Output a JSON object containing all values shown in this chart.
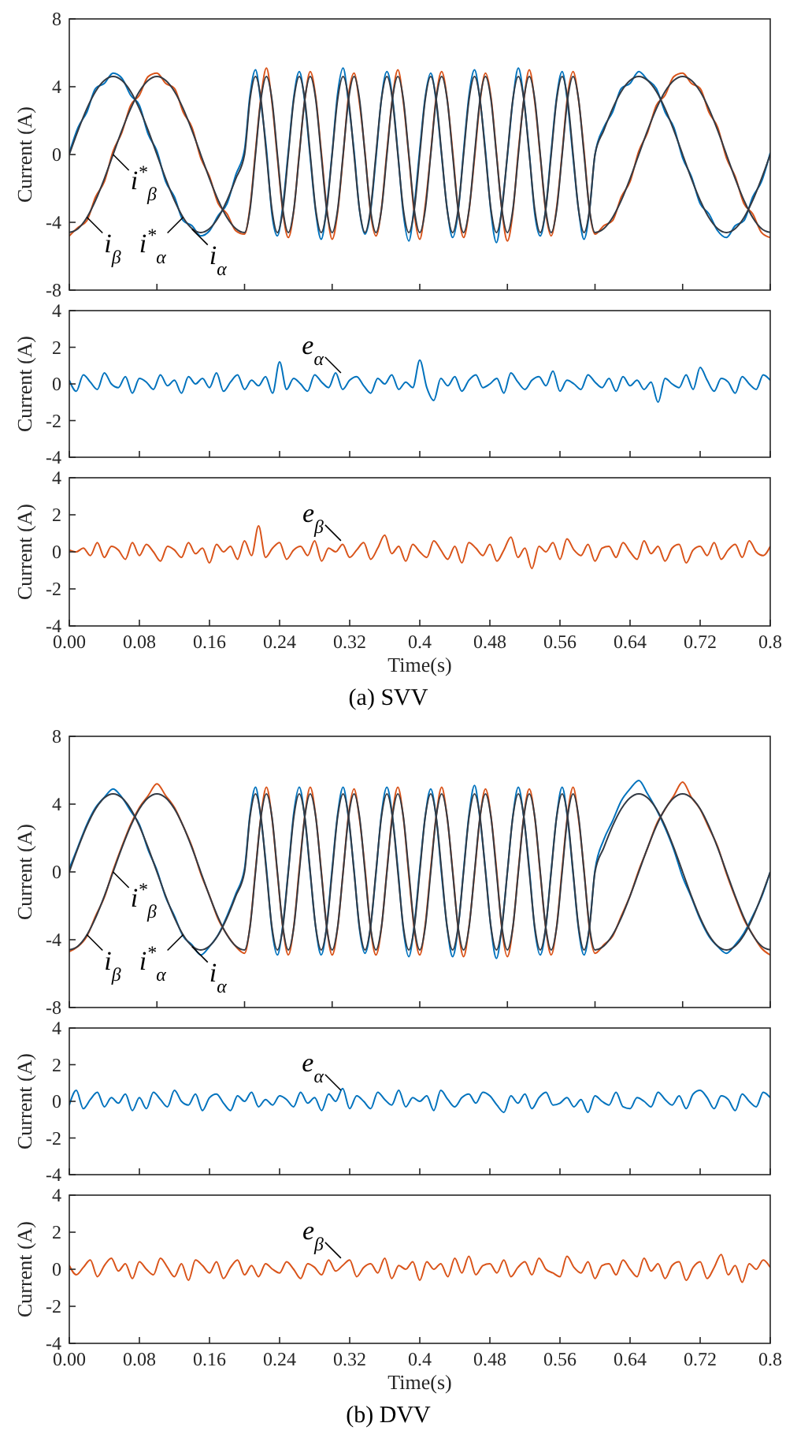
{
  "chart_data": [
    {
      "type": "line",
      "ylabel": "Current (A)",
      "xlim": [
        0,
        0.8
      ],
      "ylim": [
        -8,
        8
      ],
      "yticks": [
        -8,
        -4,
        0,
        4,
        8
      ],
      "tick_labels": "y",
      "xticks": [
        {
          "value": 0,
          "label": null
        },
        {
          "value": 0.1,
          "label": null
        },
        {
          "value": 0.2,
          "label": null
        },
        {
          "value": 0.3,
          "label": null
        },
        {
          "value": 0.4,
          "label": null
        },
        {
          "value": 0.5,
          "label": null
        },
        {
          "value": 0.6,
          "label": null
        },
        {
          "value": 0.7,
          "label": null
        },
        {
          "value": 0.8,
          "label": null
        }
      ],
      "x": [
        0,
        0.01,
        0.02,
        0.03,
        0.04,
        0.05,
        0.06,
        0.07,
        0.08,
        0.09,
        0.1,
        0.11,
        0.12,
        0.13,
        0.14,
        0.15,
        0.16,
        0.17,
        0.18,
        0.19,
        0.2,
        0.20625,
        0.2125,
        0.21875,
        0.225,
        0.23125,
        0.2375,
        0.24375,
        0.25,
        0.25625,
        0.2625,
        0.26875,
        0.275,
        0.28125,
        0.2875,
        0.29375,
        0.3,
        0.30625,
        0.3125,
        0.31875,
        0.325,
        0.33125,
        0.3375,
        0.34375,
        0.35,
        0.35625,
        0.3625,
        0.36875,
        0.375,
        0.38125,
        0.3875,
        0.39375,
        0.4,
        0.40625,
        0.4125,
        0.41875,
        0.425,
        0.43125,
        0.4375,
        0.44375,
        0.45,
        0.45625,
        0.4625,
        0.46875,
        0.475,
        0.48125,
        0.4875,
        0.49375,
        0.5,
        0.50625,
        0.5125,
        0.51875,
        0.525,
        0.53125,
        0.5375,
        0.54375,
        0.55,
        0.55625,
        0.5625,
        0.56875,
        0.575,
        0.58125,
        0.5875,
        0.59375,
        0.6,
        0.61,
        0.62,
        0.63,
        0.64,
        0.65,
        0.66,
        0.67,
        0.68,
        0.69,
        0.7,
        0.71,
        0.72,
        0.73,
        0.74,
        0.75,
        0.76,
        0.77,
        0.78,
        0.79,
        0.8
      ],
      "series": [
        {
          "color": "#0072bd",
          "values": [
            0.1,
            1.6,
            2.5,
            3.9,
            4.2,
            4.8,
            4.5,
            3.5,
            2.9,
            1.2,
            0.2,
            -1.6,
            -2.5,
            -3.9,
            -4.2,
            -4.8,
            -4.5,
            -3.6,
            -2.9,
            -1.2,
            0.3,
            3.5,
            5.0,
            3.0,
            0.3,
            -3.5,
            -4.8,
            -3.0,
            0.2,
            3.4,
            4.9,
            3.1,
            -0.2,
            -3.4,
            -5.0,
            -3.1,
            0.1,
            3.6,
            5.1,
            3.0,
            0.2,
            -3.3,
            -4.7,
            -3.4,
            -0.2,
            3.3,
            4.9,
            3.4,
            0.1,
            -3.5,
            -5.1,
            -3.0,
            0.3,
            3.4,
            4.8,
            3.1,
            -0.1,
            -3.2,
            -4.9,
            -3.4,
            0.2,
            3.5,
            5.0,
            3.2,
            0.2,
            -3.4,
            -5.2,
            -3.1,
            -0.1,
            3.2,
            5.1,
            3.3,
            0.1,
            -3.5,
            -4.8,
            -3.2,
            0.2,
            3.4,
            4.9,
            3.0,
            -0.2,
            -3.3,
            -5.0,
            -3.3,
            0.0,
            1.6,
            2.5,
            3.9,
            4.2,
            4.9,
            4.4,
            3.9,
            2.5,
            1.6,
            -0.2,
            -1.3,
            -2.9,
            -3.5,
            -4.5,
            -4.9,
            -4.2,
            -3.9,
            -2.5,
            -1.6,
            0.1
          ]
        },
        {
          "color": "#d95319",
          "values": [
            -4.8,
            -4.3,
            -3.9,
            -2.5,
            -1.6,
            0.2,
            1.3,
            2.9,
            3.5,
            4.6,
            4.8,
            4.2,
            3.9,
            2.5,
            1.6,
            -0.2,
            -1.3,
            -2.9,
            -3.5,
            -4.5,
            -4.7,
            -3.1,
            0.2,
            3.4,
            5.1,
            3.1,
            -0.2,
            -3.4,
            -4.9,
            -3.3,
            0.1,
            3.2,
            4.9,
            3.4,
            0.2,
            -3.1,
            -5.0,
            -3.4,
            -0.1,
            3.5,
            4.8,
            3.0,
            0.1,
            -3.4,
            -4.8,
            -3.2,
            0.2,
            3.3,
            5.0,
            3.1,
            -0.1,
            -3.5,
            -5.0,
            -3.0,
            0.1,
            3.4,
            4.9,
            3.3,
            0.2,
            -3.2,
            -4.9,
            -3.3,
            -0.2,
            3.1,
            4.8,
            3.4,
            0.1,
            -3.3,
            -5.1,
            -3.4,
            0.2,
            3.2,
            5.0,
            3.1,
            -0.1,
            -3.4,
            -4.8,
            -3.1,
            0.1,
            3.5,
            4.9,
            3.2,
            0.2,
            -3.3,
            -4.7,
            -4.2,
            -3.9,
            -2.5,
            -1.6,
            0.2,
            1.3,
            2.9,
            3.5,
            4.6,
            4.8,
            4.2,
            3.9,
            2.5,
            1.6,
            -0.2,
            -1.3,
            -2.9,
            -3.5,
            -4.6,
            -4.9
          ]
        },
        {
          "color": "#333a44",
          "values": [
            0,
            1.42,
            2.7,
            3.72,
            4.37,
            4.6,
            4.37,
            3.72,
            2.7,
            1.42,
            0,
            -1.42,
            -2.7,
            -3.72,
            -4.37,
            -4.6,
            -4.37,
            -3.72,
            -2.7,
            -1.42,
            0,
            3.25,
            4.6,
            3.25,
            0,
            -3.25,
            -4.6,
            -3.25,
            0,
            3.25,
            4.6,
            3.25,
            0,
            -3.25,
            -4.6,
            -3.25,
            0,
            3.25,
            4.6,
            3.25,
            0,
            -3.25,
            -4.6,
            -3.25,
            0,
            3.25,
            4.6,
            3.25,
            0,
            -3.25,
            -4.6,
            -3.25,
            0,
            3.25,
            4.6,
            3.25,
            0,
            -3.25,
            -4.6,
            -3.25,
            0,
            3.25,
            4.6,
            3.25,
            0,
            -3.25,
            -4.6,
            -3.25,
            0,
            3.25,
            4.6,
            3.25,
            0,
            -3.25,
            -4.6,
            -3.25,
            0,
            3.25,
            4.6,
            3.25,
            0,
            -3.25,
            -4.6,
            -3.25,
            0,
            1.42,
            2.7,
            3.72,
            4.37,
            4.6,
            4.37,
            3.72,
            2.7,
            1.42,
            0,
            -1.42,
            -2.7,
            -3.72,
            -4.37,
            -4.6,
            -4.37,
            -3.72,
            -2.7,
            -1.42,
            0
          ]
        },
        {
          "color": "#333a44",
          "values": [
            -4.6,
            -4.37,
            -3.72,
            -2.7,
            -1.42,
            0,
            1.42,
            2.7,
            3.72,
            4.37,
            4.6,
            4.37,
            3.72,
            2.7,
            1.42,
            0,
            -1.42,
            -2.7,
            -3.72,
            -4.37,
            -4.6,
            -3.25,
            0,
            3.25,
            4.6,
            3.25,
            0,
            -3.25,
            -4.6,
            -3.25,
            0,
            3.25,
            4.6,
            3.25,
            0,
            -3.25,
            -4.6,
            -3.25,
            0,
            3.25,
            4.6,
            3.25,
            0,
            -3.25,
            -4.6,
            -3.25,
            0,
            3.25,
            4.6,
            3.25,
            0,
            -3.25,
            -4.6,
            -3.25,
            0,
            3.25,
            4.6,
            3.25,
            0,
            -3.25,
            -4.6,
            -3.25,
            0,
            3.25,
            4.6,
            3.25,
            0,
            -3.25,
            -4.6,
            -3.25,
            0,
            3.25,
            4.6,
            3.25,
            0,
            -3.25,
            -4.6,
            -3.25,
            0,
            3.25,
            4.6,
            3.25,
            0,
            -3.25,
            -4.6,
            -4.37,
            -3.72,
            -2.7,
            -1.42,
            0,
            1.42,
            2.7,
            3.72,
            4.37,
            4.6,
            4.37,
            3.72,
            2.7,
            1.42,
            0,
            -1.42,
            -2.7,
            -3.72,
            -4.37,
            -4.6
          ]
        }
      ],
      "annotations": [
        {
          "text": "i$^{*}$$_{β}$",
          "x": 0.05,
          "y": 0
        },
        {
          "text": "i$_{β}$",
          "x": 0.02,
          "y": -3.7
        },
        {
          "text": "i$^{*}$$_{α}$",
          "x": 0.13,
          "y": -3.7
        },
        {
          "text": "i$_{α}$",
          "x": 0.14,
          "y": -4.4
        }
      ]
    },
    {
      "type": "line",
      "ylabel": "Current (A)",
      "xlim": [
        0,
        0.8
      ],
      "ylim": [
        -4,
        4
      ],
      "yticks": [
        -4,
        -2,
        0,
        2,
        4
      ],
      "tick_labels": "y",
      "xticks": [
        {
          "value": 0,
          "label": null
        },
        {
          "value": 0.08,
          "label": null
        },
        {
          "value": 0.16,
          "label": null
        },
        {
          "value": 0.24,
          "label": null
        },
        {
          "value": 0.32,
          "label": null
        },
        {
          "value": 0.4,
          "label": null
        },
        {
          "value": 0.48,
          "label": null
        },
        {
          "value": 0.56,
          "label": null
        },
        {
          "value": 0.64,
          "label": null
        },
        {
          "value": 0.72,
          "label": null
        },
        {
          "value": 0.8,
          "label": null
        }
      ],
      "x": [
        0,
        0.008,
        0.016,
        0.024,
        0.032,
        0.04,
        0.048,
        0.056,
        0.064,
        0.072,
        0.08,
        0.088,
        0.096,
        0.104,
        0.112,
        0.12,
        0.128,
        0.136,
        0.144,
        0.152,
        0.16,
        0.168,
        0.176,
        0.184,
        0.192,
        0.2,
        0.208,
        0.216,
        0.224,
        0.232,
        0.24,
        0.248,
        0.256,
        0.264,
        0.272,
        0.28,
        0.288,
        0.296,
        0.304,
        0.312,
        0.32,
        0.328,
        0.336,
        0.344,
        0.352,
        0.36,
        0.368,
        0.376,
        0.384,
        0.392,
        0.4,
        0.408,
        0.416,
        0.424,
        0.432,
        0.44,
        0.448,
        0.456,
        0.464,
        0.472,
        0.48,
        0.488,
        0.496,
        0.504,
        0.512,
        0.52,
        0.528,
        0.536,
        0.544,
        0.552,
        0.56,
        0.568,
        0.576,
        0.584,
        0.592,
        0.6,
        0.608,
        0.616,
        0.624,
        0.632,
        0.64,
        0.648,
        0.656,
        0.664,
        0.672,
        0.68,
        0.688,
        0.696,
        0.704,
        0.712,
        0.72,
        0.728,
        0.736,
        0.744,
        0.752,
        0.76,
        0.768,
        0.776,
        0.784,
        0.792,
        0.8
      ],
      "series": [
        {
          "color": "#0072bd",
          "values": [
            0.2,
            -0.4,
            0.5,
            0.1,
            -0.3,
            0.6,
            0.0,
            -0.2,
            0.4,
            -0.5,
            0.3,
            0.1,
            -0.3,
            0.5,
            -0.1,
            0.2,
            -0.5,
            0.4,
            0.0,
            0.3,
            -0.2,
            0.6,
            -0.4,
            0.1,
            0.5,
            -0.3,
            0.2,
            -0.1,
            0.4,
            -0.5,
            1.2,
            -0.3,
            0.3,
            0.0,
            -0.4,
            0.5,
            0.1,
            -0.2,
            0.6,
            -0.3,
            0.2,
            0.4,
            -0.1,
            -0.5,
            0.3,
            0.0,
            0.5,
            -0.3,
            0.1,
            -0.2,
            1.3,
            -0.2,
            -0.9,
            0.3,
            -0.1,
            0.4,
            -0.4,
            0.2,
            0.5,
            -0.2,
            0.0,
            0.3,
            -0.5,
            0.6,
            0.1,
            -0.3,
            0.2,
            0.4,
            -0.1,
            0.7,
            -0.4,
            0.2,
            0.0,
            -0.3,
            0.5,
            0.1,
            -0.2,
            0.3,
            -0.4,
            0.4,
            -0.1,
            0.2,
            -0.3,
            0.1,
            -1.0,
            0.3,
            0.0,
            -0.2,
            0.5,
            -0.3,
            0.9,
            0.2,
            -0.4,
            0.3,
            0.1,
            -0.5,
            0.4,
            0.0,
            -0.3,
            0.5,
            0.2
          ]
        }
      ],
      "annotations": [
        {
          "text": "e$_{α}$",
          "x": 0.31,
          "y": 0.6
        }
      ]
    },
    {
      "type": "line",
      "ylabel": "Current (A)",
      "xlabel": "Time(s)",
      "xlim": [
        0,
        0.8
      ],
      "ylim": [
        -4,
        4
      ],
      "yticks": [
        -4,
        -2,
        0,
        2,
        4
      ],
      "xticks": [
        {
          "value": 0,
          "label": "0.00"
        },
        0.08,
        0.16,
        0.24,
        0.32,
        0.4,
        0.48,
        0.56,
        0.64,
        0.72,
        0.8
      ],
      "x": [
        0,
        0.008,
        0.016,
        0.024,
        0.032,
        0.04,
        0.048,
        0.056,
        0.064,
        0.072,
        0.08,
        0.088,
        0.096,
        0.104,
        0.112,
        0.12,
        0.128,
        0.136,
        0.144,
        0.152,
        0.16,
        0.168,
        0.176,
        0.184,
        0.192,
        0.2,
        0.208,
        0.216,
        0.224,
        0.232,
        0.24,
        0.248,
        0.256,
        0.264,
        0.272,
        0.28,
        0.288,
        0.296,
        0.304,
        0.312,
        0.32,
        0.328,
        0.336,
        0.344,
        0.352,
        0.36,
        0.368,
        0.376,
        0.384,
        0.392,
        0.4,
        0.408,
        0.416,
        0.424,
        0.432,
        0.44,
        0.448,
        0.456,
        0.464,
        0.472,
        0.48,
        0.488,
        0.496,
        0.504,
        0.512,
        0.52,
        0.528,
        0.536,
        0.544,
        0.552,
        0.56,
        0.568,
        0.576,
        0.584,
        0.592,
        0.6,
        0.608,
        0.616,
        0.624,
        0.632,
        0.64,
        0.648,
        0.656,
        0.664,
        0.672,
        0.68,
        0.688,
        0.696,
        0.704,
        0.712,
        0.72,
        0.728,
        0.736,
        0.744,
        0.752,
        0.76,
        0.768,
        0.776,
        0.784,
        0.792,
        0.8
      ],
      "series": [
        {
          "color": "#d95319",
          "values": [
            0.1,
            0.0,
            0.2,
            -0.2,
            0.5,
            -0.3,
            0.3,
            0.1,
            -0.4,
            0.5,
            -0.2,
            0.4,
            0.0,
            -0.5,
            0.3,
            0.1,
            -0.3,
            0.5,
            -0.1,
            0.2,
            -0.6,
            0.4,
            0.0,
            0.3,
            -0.4,
            0.6,
            -0.2,
            1.4,
            -0.3,
            0.2,
            0.5,
            -0.4,
            0.1,
            0.3,
            -0.2,
            0.6,
            -0.5,
            0.2,
            0.0,
            0.4,
            -0.3,
            0.1,
            0.5,
            -0.4,
            0.2,
            0.9,
            -0.1,
            0.3,
            -0.5,
            0.4,
            0.0,
            -0.3,
            0.6,
            0.1,
            -0.4,
            0.3,
            -0.6,
            0.5,
            0.2,
            -0.2,
            0.4,
            -0.5,
            0.1,
            0.8,
            -0.3,
            0.2,
            -0.9,
            0.3,
            0.0,
            0.5,
            -0.4,
            0.7,
            0.1,
            -0.2,
            0.4,
            -0.5,
            0.2,
            0.3,
            -0.3,
            0.5,
            0.0,
            -0.4,
            0.6,
            -0.1,
            0.3,
            -0.5,
            0.2,
            0.4,
            -0.6,
            0.1,
            0.3,
            -0.2,
            0.5,
            -0.4,
            0.1,
            0.4,
            -0.3,
            0.6,
            0.0,
            -0.2,
            0.3
          ]
        }
      ],
      "annotations": [
        {
          "text": "e$_{β}$",
          "x": 0.31,
          "y": 0.6
        },
        "(a) SVV"
      ]
    },
    {
      "type": "line",
      "ylabel": "Current (A)",
      "xlim": [
        0,
        0.8
      ],
      "ylim": [
        -8,
        8
      ],
      "yticks": [
        -8,
        -4,
        0,
        4,
        8
      ],
      "tick_labels": "y",
      "xticks": [
        {
          "value": 0,
          "label": null
        },
        {
          "value": 0.1,
          "label": null
        },
        {
          "value": 0.2,
          "label": null
        },
        {
          "value": 0.3,
          "label": null
        },
        {
          "value": 0.4,
          "label": null
        },
        {
          "value": 0.5,
          "label": null
        },
        {
          "value": 0.6,
          "label": null
        },
        {
          "value": 0.7,
          "label": null
        },
        {
          "value": 0.8,
          "label": null
        }
      ],
      "x": [
        0,
        0.01,
        0.02,
        0.03,
        0.04,
        0.05,
        0.06,
        0.07,
        0.08,
        0.09,
        0.1,
        0.11,
        0.12,
        0.13,
        0.14,
        0.15,
        0.16,
        0.17,
        0.18,
        0.19,
        0.2,
        0.20625,
        0.2125,
        0.21875,
        0.225,
        0.23125,
        0.2375,
        0.24375,
        0.25,
        0.25625,
        0.2625,
        0.26875,
        0.275,
        0.28125,
        0.2875,
        0.29375,
        0.3,
        0.30625,
        0.3125,
        0.31875,
        0.325,
        0.33125,
        0.3375,
        0.34375,
        0.35,
        0.35625,
        0.3625,
        0.36875,
        0.375,
        0.38125,
        0.3875,
        0.39375,
        0.4,
        0.40625,
        0.4125,
        0.41875,
        0.425,
        0.43125,
        0.4375,
        0.44375,
        0.45,
        0.45625,
        0.4625,
        0.46875,
        0.475,
        0.48125,
        0.4875,
        0.49375,
        0.5,
        0.50625,
        0.5125,
        0.51875,
        0.525,
        0.53125,
        0.5375,
        0.54375,
        0.55,
        0.55625,
        0.5625,
        0.56875,
        0.575,
        0.58125,
        0.5875,
        0.59375,
        0.6,
        0.61,
        0.62,
        0.63,
        0.64,
        0.65,
        0.66,
        0.67,
        0.68,
        0.69,
        0.7,
        0.71,
        0.72,
        0.73,
        0.74,
        0.75,
        0.76,
        0.77,
        0.78,
        0.79,
        0.8
      ],
      "series": [
        {
          "color": "#0072bd",
          "values": [
            0.2,
            1.5,
            2.8,
            3.8,
            4.4,
            4.9,
            4.4,
            3.6,
            2.8,
            1.3,
            0.1,
            -1.5,
            -2.6,
            -3.8,
            -4.3,
            -4.9,
            -4.4,
            -3.7,
            -2.6,
            -1.3,
            0.2,
            3.4,
            5.0,
            3.1,
            0.2,
            -3.4,
            -4.9,
            -3.1,
            0.1,
            3.5,
            5.0,
            3.2,
            -0.1,
            -3.3,
            -4.9,
            -3.2,
            0.2,
            3.4,
            5.0,
            3.1,
            0.1,
            -3.4,
            -4.8,
            -3.3,
            -0.1,
            3.4,
            5.0,
            3.3,
            0.2,
            -3.4,
            -5.0,
            -3.1,
            0.2,
            3.3,
            4.9,
            3.2,
            -0.2,
            -3.3,
            -5.0,
            -3.3,
            0.1,
            3.4,
            5.1,
            3.1,
            0.1,
            -3.3,
            -5.1,
            -3.2,
            0.0,
            3.3,
            5.0,
            3.2,
            0.2,
            -3.4,
            -4.9,
            -3.3,
            0.1,
            3.3,
            5.0,
            3.1,
            -0.1,
            -3.4,
            -4.9,
            -3.2,
            0.1,
            1.9,
            3.0,
            4.2,
            4.9,
            5.4,
            4.6,
            3.7,
            2.6,
            1.3,
            -0.3,
            -1.5,
            -2.8,
            -3.8,
            -4.4,
            -4.8,
            -4.3,
            -3.6,
            -2.6,
            -1.5,
            0.0
          ]
        },
        {
          "color": "#d95319",
          "values": [
            -4.7,
            -4.4,
            -3.8,
            -2.6,
            -1.5,
            0.1,
            1.5,
            2.8,
            3.8,
            4.5,
            5.2,
            4.5,
            3.8,
            2.7,
            1.5,
            -0.1,
            -1.4,
            -2.8,
            -3.7,
            -4.4,
            -4.8,
            -3.2,
            0.1,
            3.3,
            5.0,
            3.2,
            -0.1,
            -3.3,
            -4.9,
            -3.2,
            0.2,
            3.3,
            5.0,
            3.3,
            0.1,
            -3.2,
            -4.9,
            -3.3,
            0.0,
            3.4,
            4.9,
            3.1,
            0.2,
            -3.3,
            -4.9,
            -3.3,
            0.1,
            3.4,
            5.0,
            3.2,
            -0.2,
            -3.4,
            -4.9,
            -3.1,
            0.2,
            3.3,
            5.0,
            3.2,
            0.1,
            -3.3,
            -5.0,
            -3.2,
            -0.1,
            3.2,
            4.9,
            3.3,
            0.2,
            -3.4,
            -5.0,
            -3.3,
            0.1,
            3.3,
            4.9,
            3.2,
            -0.1,
            -3.3,
            -4.9,
            -3.2,
            0.2,
            3.4,
            5.0,
            3.1,
            0.1,
            -3.4,
            -4.8,
            -4.3,
            -3.8,
            -2.6,
            -1.4,
            0.1,
            1.4,
            2.8,
            3.7,
            4.5,
            5.3,
            4.4,
            3.7,
            2.6,
            1.5,
            -0.1,
            -1.5,
            -2.8,
            -3.7,
            -4.5,
            -4.9
          ]
        },
        {
          "color": "#333a44",
          "values": [
            0,
            1.42,
            2.7,
            3.72,
            4.37,
            4.6,
            4.37,
            3.72,
            2.7,
            1.42,
            0,
            -1.42,
            -2.7,
            -3.72,
            -4.37,
            -4.6,
            -4.37,
            -3.72,
            -2.7,
            -1.42,
            0,
            3.25,
            4.6,
            3.25,
            0,
            -3.25,
            -4.6,
            -3.25,
            0,
            3.25,
            4.6,
            3.25,
            0,
            -3.25,
            -4.6,
            -3.25,
            0,
            3.25,
            4.6,
            3.25,
            0,
            -3.25,
            -4.6,
            -3.25,
            0,
            3.25,
            4.6,
            3.25,
            0,
            -3.25,
            -4.6,
            -3.25,
            0,
            3.25,
            4.6,
            3.25,
            0,
            -3.25,
            -4.6,
            -3.25,
            0,
            3.25,
            4.6,
            3.25,
            0,
            -3.25,
            -4.6,
            -3.25,
            0,
            3.25,
            4.6,
            3.25,
            0,
            -3.25,
            -4.6,
            -3.25,
            0,
            3.25,
            4.6,
            3.25,
            0,
            -3.25,
            -4.6,
            -3.25,
            0,
            1.42,
            2.7,
            3.72,
            4.37,
            4.6,
            4.37,
            3.72,
            2.7,
            1.42,
            0,
            -1.42,
            -2.7,
            -3.72,
            -4.37,
            -4.6,
            -4.37,
            -3.72,
            -2.7,
            -1.42,
            0
          ]
        },
        {
          "color": "#333a44",
          "values": [
            -4.6,
            -4.37,
            -3.72,
            -2.7,
            -1.42,
            0,
            1.42,
            2.7,
            3.72,
            4.37,
            4.6,
            4.37,
            3.72,
            2.7,
            1.42,
            0,
            -1.42,
            -2.7,
            -3.72,
            -4.37,
            -4.6,
            -3.25,
            0,
            3.25,
            4.6,
            3.25,
            0,
            -3.25,
            -4.6,
            -3.25,
            0,
            3.25,
            4.6,
            3.25,
            0,
            -3.25,
            -4.6,
            -3.25,
            0,
            3.25,
            4.6,
            3.25,
            0,
            -3.25,
            -4.6,
            -3.25,
            0,
            3.25,
            4.6,
            3.25,
            0,
            -3.25,
            -4.6,
            -3.25,
            0,
            3.25,
            4.6,
            3.25,
            0,
            -3.25,
            -4.6,
            -3.25,
            0,
            3.25,
            4.6,
            3.25,
            0,
            -3.25,
            -4.6,
            -3.25,
            0,
            3.25,
            4.6,
            3.25,
            0,
            -3.25,
            -4.6,
            -3.25,
            0,
            3.25,
            4.6,
            3.25,
            0,
            -3.25,
            -4.6,
            -4.37,
            -3.72,
            -2.7,
            -1.42,
            0,
            1.42,
            2.7,
            3.72,
            4.37,
            4.6,
            4.37,
            3.72,
            2.7,
            1.42,
            0,
            -1.42,
            -2.7,
            -3.72,
            -4.37,
            -4.6
          ]
        }
      ],
      "annotations": [
        {
          "text": "i$^{*}$$_{β}$",
          "x": 0.05,
          "y": 0
        },
        {
          "text": "i$_{β}$",
          "x": 0.02,
          "y": -3.7
        },
        {
          "text": "i$^{*}$$_{α}$",
          "x": 0.13,
          "y": -3.7
        },
        {
          "text": "i$_{α}$",
          "x": 0.14,
          "y": -4.4
        }
      ]
    },
    {
      "type": "line",
      "ylabel": "Current (A)",
      "xlim": [
        0,
        0.8
      ],
      "ylim": [
        -4,
        4
      ],
      "yticks": [
        -4,
        -2,
        0,
        2,
        4
      ],
      "tick_labels": "y",
      "xticks": [
        {
          "value": 0,
          "label": null
        },
        {
          "value": 0.08,
          "label": null
        },
        {
          "value": 0.16,
          "label": null
        },
        {
          "value": 0.24,
          "label": null
        },
        {
          "value": 0.32,
          "label": null
        },
        {
          "value": 0.4,
          "label": null
        },
        {
          "value": 0.48,
          "label": null
        },
        {
          "value": 0.56,
          "label": null
        },
        {
          "value": 0.64,
          "label": null
        },
        {
          "value": 0.72,
          "label": null
        },
        {
          "value": 0.8,
          "label": null
        }
      ],
      "x": [
        0,
        0.008,
        0.016,
        0.024,
        0.032,
        0.04,
        0.048,
        0.056,
        0.064,
        0.072,
        0.08,
        0.088,
        0.096,
        0.104,
        0.112,
        0.12,
        0.128,
        0.136,
        0.144,
        0.152,
        0.16,
        0.168,
        0.176,
        0.184,
        0.192,
        0.2,
        0.208,
        0.216,
        0.224,
        0.232,
        0.24,
        0.248,
        0.256,
        0.264,
        0.272,
        0.28,
        0.288,
        0.296,
        0.304,
        0.312,
        0.32,
        0.328,
        0.336,
        0.344,
        0.352,
        0.36,
        0.368,
        0.376,
        0.384,
        0.392,
        0.4,
        0.408,
        0.416,
        0.424,
        0.432,
        0.44,
        0.448,
        0.456,
        0.464,
        0.472,
        0.48,
        0.488,
        0.496,
        0.504,
        0.512,
        0.52,
        0.528,
        0.536,
        0.544,
        0.552,
        0.56,
        0.568,
        0.576,
        0.584,
        0.592,
        0.6,
        0.608,
        0.616,
        0.624,
        0.632,
        0.64,
        0.648,
        0.656,
        0.664,
        0.672,
        0.68,
        0.688,
        0.696,
        0.704,
        0.712,
        0.72,
        0.728,
        0.736,
        0.744,
        0.752,
        0.76,
        0.768,
        0.776,
        0.784,
        0.792,
        0.8
      ],
      "series": [
        {
          "color": "#0072bd",
          "values": [
            -0.2,
            0.6,
            -0.4,
            0.1,
            0.5,
            -0.3,
            0.2,
            -0.1,
            0.4,
            -0.5,
            0.2,
            -0.4,
            0.5,
            0.1,
            -0.3,
            0.6,
            0.0,
            -0.2,
            0.4,
            -0.5,
            0.2,
            0.4,
            -0.1,
            -0.5,
            0.3,
            0.0,
            0.5,
            -0.3,
            0.1,
            -0.2,
            0.3,
            0.1,
            -0.3,
            0.5,
            -0.1,
            0.2,
            -0.5,
            0.4,
            0.0,
            0.7,
            -0.4,
            0.3,
            0.0,
            -0.4,
            0.5,
            0.1,
            -0.2,
            0.6,
            -0.3,
            0.2,
            0.0,
            0.3,
            -0.5,
            0.6,
            0.1,
            -0.3,
            0.2,
            0.4,
            -0.1,
            0.5,
            0.3,
            -0.2,
            -0.6,
            0.3,
            -0.1,
            0.4,
            -0.4,
            0.2,
            0.5,
            -0.2,
            -0.1,
            0.2,
            -0.3,
            0.1,
            -0.6,
            0.3,
            0.0,
            -0.2,
            0.5,
            -0.3,
            -0.4,
            0.2,
            0.0,
            -0.3,
            0.5,
            0.1,
            -0.2,
            0.3,
            -0.4,
            0.4,
            0.6,
            0.2,
            -0.4,
            0.3,
            0.1,
            -0.5,
            0.4,
            0.0,
            -0.3,
            0.5,
            0.2
          ]
        }
      ],
      "annotations": [
        {
          "text": "e$_{α}$",
          "x": 0.31,
          "y": 0.6
        }
      ]
    },
    {
      "type": "line",
      "ylabel": "Current (A)",
      "xlabel": "Time(s)",
      "xlim": [
        0,
        0.8
      ],
      "ylim": [
        -4,
        4
      ],
      "yticks": [
        -4,
        -2,
        0,
        2,
        4
      ],
      "xticks": [
        {
          "value": 0,
          "label": "0.00"
        },
        0.08,
        0.16,
        0.24,
        0.32,
        0.4,
        0.48,
        0.56,
        0.64,
        0.72,
        0.8
      ],
      "x": [
        0,
        0.008,
        0.016,
        0.024,
        0.032,
        0.04,
        0.048,
        0.056,
        0.064,
        0.072,
        0.08,
        0.088,
        0.096,
        0.104,
        0.112,
        0.12,
        0.128,
        0.136,
        0.144,
        0.152,
        0.16,
        0.168,
        0.176,
        0.184,
        0.192,
        0.2,
        0.208,
        0.216,
        0.224,
        0.232,
        0.24,
        0.248,
        0.256,
        0.264,
        0.272,
        0.28,
        0.288,
        0.296,
        0.304,
        0.312,
        0.32,
        0.328,
        0.336,
        0.344,
        0.352,
        0.36,
        0.368,
        0.376,
        0.384,
        0.392,
        0.4,
        0.408,
        0.416,
        0.424,
        0.432,
        0.44,
        0.448,
        0.456,
        0.464,
        0.472,
        0.48,
        0.488,
        0.496,
        0.504,
        0.512,
        0.52,
        0.528,
        0.536,
        0.544,
        0.552,
        0.56,
        0.568,
        0.576,
        0.584,
        0.592,
        0.6,
        0.608,
        0.616,
        0.624,
        0.632,
        0.64,
        0.648,
        0.656,
        0.664,
        0.672,
        0.68,
        0.688,
        0.696,
        0.704,
        0.712,
        0.72,
        0.728,
        0.736,
        0.744,
        0.752,
        0.76,
        0.768,
        0.776,
        0.784,
        0.792,
        0.8
      ],
      "series": [
        {
          "color": "#d95319",
          "values": [
            0.2,
            -0.3,
            0.1,
            0.5,
            -0.4,
            0.2,
            0.6,
            -0.1,
            0.3,
            -0.5,
            0.4,
            0.0,
            -0.3,
            0.6,
            0.1,
            -0.4,
            0.3,
            -0.6,
            0.5,
            0.2,
            -0.2,
            0.4,
            -0.5,
            0.1,
            0.5,
            -0.3,
            0.2,
            -0.4,
            0.3,
            0.0,
            -0.2,
            0.4,
            0.0,
            -0.5,
            0.3,
            0.1,
            -0.3,
            0.5,
            -0.1,
            0.2,
            0.5,
            -0.4,
            0.1,
            0.3,
            -0.2,
            0.6,
            -0.5,
            0.2,
            0.0,
            0.4,
            -0.6,
            0.4,
            0.0,
            0.3,
            -0.4,
            0.6,
            -0.2,
            0.7,
            -0.3,
            0.2,
            0.3,
            -0.2,
            0.5,
            -0.4,
            0.1,
            0.4,
            -0.3,
            0.6,
            0.0,
            -0.2,
            -0.4,
            0.7,
            0.1,
            -0.2,
            0.4,
            -0.5,
            0.2,
            0.3,
            -0.3,
            0.5,
            0.0,
            -0.4,
            0.6,
            -0.1,
            0.3,
            -0.5,
            0.2,
            0.4,
            -0.6,
            0.1,
            0.4,
            -0.5,
            0.1,
            0.8,
            -0.3,
            0.2,
            -0.7,
            0.3,
            0.0,
            0.5,
            0.1
          ]
        }
      ],
      "annotations": [
        {
          "text": "e$_{β}$",
          "x": 0.31,
          "y": 0.6
        },
        "(b) DVV"
      ]
    }
  ]
}
